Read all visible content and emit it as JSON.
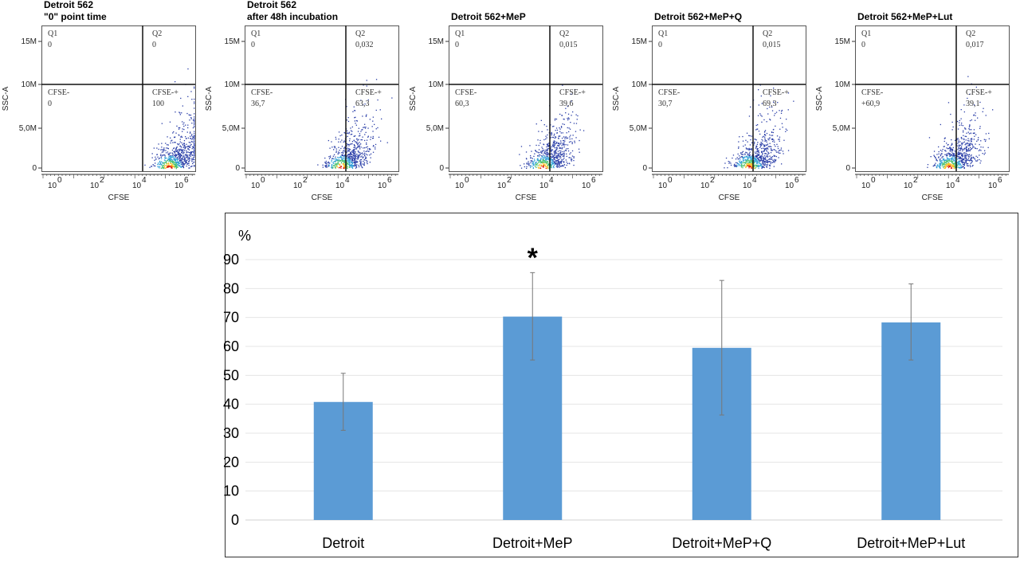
{
  "chart_data": [
    {
      "type": "scatter",
      "title": [
        "Detroit 562",
        "\"0\" point time"
      ],
      "xlabel": "CFSE",
      "ylabel": "SSC-A",
      "xscale": "log",
      "xticks": [
        "0",
        "2",
        "4",
        "6"
      ],
      "yticks": [
        "0",
        "5,0M",
        "10M",
        "15M"
      ],
      "quadrants": {
        "Q1": [
          "Q1",
          "0"
        ],
        "Q2": [
          "Q2",
          "0"
        ],
        "lower_left": [
          "CFSE-",
          "0"
        ],
        "lower_right": [
          "CFSE-+",
          "100"
        ]
      }
    },
    {
      "type": "scatter",
      "title": [
        "Detroit 562",
        "after 48h incubation"
      ],
      "xlabel": "CFSE",
      "ylabel": "SSC-A",
      "xscale": "log",
      "xticks": [
        "0",
        "2",
        "4",
        "6"
      ],
      "yticks": [
        "0",
        "5,0M",
        "10M",
        "15M"
      ],
      "quadrants": {
        "Q1": [
          "Q1",
          "0"
        ],
        "Q2": [
          "Q2",
          "0,032"
        ],
        "lower_left": [
          "CFSE-",
          "36,7"
        ],
        "lower_right": [
          "CFSE-+",
          "63,3"
        ]
      }
    },
    {
      "type": "scatter",
      "title": [
        "Detroit 562+MeP"
      ],
      "xlabel": "CFSE",
      "ylabel": "SSC-A",
      "xscale": "log",
      "xticks": [
        "0",
        "2",
        "4",
        "6"
      ],
      "yticks": [
        "0",
        "5,0M",
        "10M",
        "15M"
      ],
      "quadrants": {
        "Q1": [
          "Q1",
          "0"
        ],
        "Q2": [
          "Q2",
          "0,015"
        ],
        "lower_left": [
          "CFSE-",
          "60,3"
        ],
        "lower_right": [
          "CFSE-+",
          "39,6"
        ]
      }
    },
    {
      "type": "scatter",
      "title": [
        "Detroit 562+MeP+Q"
      ],
      "xlabel": "CFSE",
      "ylabel": "SSC-A",
      "xscale": "log",
      "xticks": [
        "0",
        "2",
        "4",
        "6"
      ],
      "yticks": [
        "0",
        "5,0M",
        "10M",
        "15M"
      ],
      "quadrants": {
        "Q1": [
          "Q1",
          "0"
        ],
        "Q2": [
          "Q2",
          "0,015"
        ],
        "lower_left": [
          "CFSE-",
          "30,7"
        ],
        "lower_right": [
          "CFSE-+",
          "69,3"
        ]
      }
    },
    {
      "type": "scatter",
      "title": [
        "Detroit 562+MeP+Lut"
      ],
      "xlabel": "CFSE",
      "ylabel": "SSC-A",
      "xscale": "log",
      "xticks": [
        "0",
        "2",
        "4",
        "6"
      ],
      "yticks": [
        "0",
        "5,0M",
        "10M",
        "15M"
      ],
      "quadrants": {
        "Q1": [
          "Q1",
          "0"
        ],
        "Q2": [
          "Q2",
          "0,017"
        ],
        "lower_left": [
          "CFSE-",
          "+60,9"
        ],
        "lower_right": [
          "CFSE-+",
          "39,1"
        ]
      }
    },
    {
      "type": "bar",
      "ylabel": "%",
      "categories": [
        "Detroit",
        "Detroit+MeP",
        "Detroit+MeP+Q",
        "Detroit+MeP+Lut"
      ],
      "values": [
        40.8,
        70.3,
        59.5,
        68.3
      ],
      "error_low": [
        31.0,
        55.3,
        36.3,
        55.3
      ],
      "error_high": [
        50.7,
        85.5,
        82.8,
        81.6
      ],
      "annotations": [
        "",
        "*",
        "",
        ""
      ],
      "ylim": [
        0,
        90
      ],
      "yticks": [
        0,
        10,
        20,
        30,
        40,
        50,
        60,
        70,
        80,
        90
      ],
      "grid": true,
      "bar_color": "#5b9bd5"
    }
  ]
}
